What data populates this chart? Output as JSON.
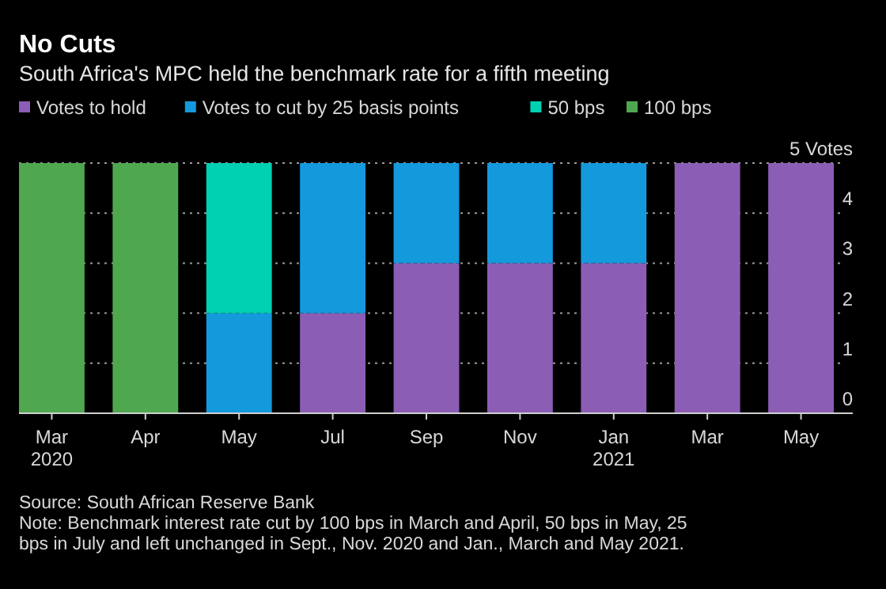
{
  "chart_data": {
    "type": "bar",
    "stacked": true,
    "title": "No Cuts",
    "subtitle": "South Africa's MPC held the benchmark rate for a fifth meeting",
    "categories": [
      "Mar\n2020",
      "Apr",
      "May",
      "Jul",
      "Sep",
      "Nov",
      "Jan\n2021",
      "Mar",
      "May"
    ],
    "series": [
      {
        "name": "Votes to hold",
        "color": "#8b5db5",
        "values": [
          0,
          0,
          0,
          2,
          3,
          3,
          3,
          5,
          5
        ]
      },
      {
        "name": "Votes to cut by 25 basis points",
        "color": "#1499dc",
        "values": [
          0,
          0,
          2,
          3,
          2,
          2,
          2,
          0,
          0
        ]
      },
      {
        "name": "50 bps",
        "color": "#00d1b2",
        "values": [
          0,
          0,
          3,
          0,
          0,
          0,
          0,
          0,
          0
        ]
      },
      {
        "name": "100 bps",
        "color": "#4fa84f",
        "values": [
          5,
          5,
          0,
          0,
          0,
          0,
          0,
          0,
          0
        ]
      }
    ],
    "ylim": [
      0,
      5
    ],
    "yticks": [
      0,
      1,
      2,
      3,
      4,
      {
        "value": 5,
        "label": "5 Votes"
      }
    ],
    "grid": "y",
    "legend": "top left",
    "annotations": [
      "Source: South African Reserve Bank",
      "Note: Benchmark interest rate cut by 100 bps in March and April, 50 bps in May, 25 bps in July and left unchanged in Sept., Nov. 2020 and Jan., March and May 2021."
    ]
  }
}
